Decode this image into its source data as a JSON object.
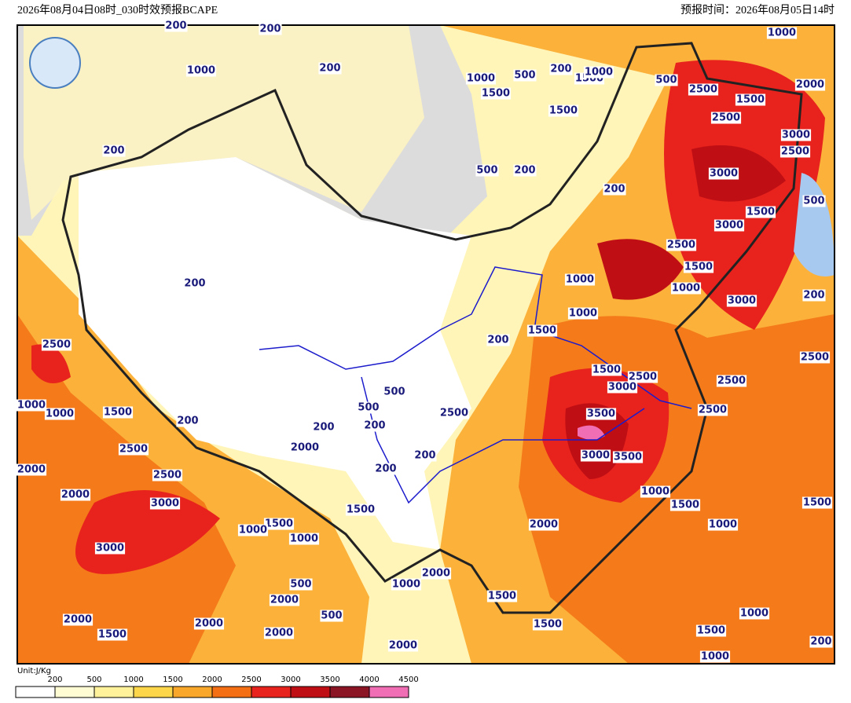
{
  "header": {
    "left": "2026年08月04日08时_030时效预报BCAPE",
    "right": "预报时间：2026年08月05日14时"
  },
  "legend": {
    "unit": "Unit:J/Kg",
    "levels": [
      "200",
      "500",
      "1000",
      "1500",
      "2000",
      "2500",
      "3000",
      "3500",
      "4000",
      "4500"
    ],
    "colors": [
      "#ffffff",
      "#fffbd2",
      "#fff29a",
      "#fdd64a",
      "#f9a72a",
      "#f46f14",
      "#e8221c",
      "#bf0f15",
      "#8c1525",
      "#f06eb4"
    ]
  },
  "contour_labels": [
    "200",
    "200",
    "1000",
    "200",
    "200",
    "1000",
    "500",
    "200",
    "1500",
    "1000",
    "1500",
    "1500",
    "500",
    "2500",
    "1500",
    "1000",
    "2000",
    "2500",
    "3000",
    "2500",
    "500",
    "200",
    "3000",
    "200",
    "500",
    "1500",
    "3000",
    "2500",
    "200",
    "1000",
    "1500",
    "200",
    "3000",
    "1000",
    "1000",
    "2500",
    "200",
    "1500",
    "2500",
    "1500",
    "2500",
    "3000",
    "2500",
    "500",
    "1000",
    "1000",
    "1500",
    "500",
    "2500",
    "2500",
    "3500",
    "200",
    "200",
    "200",
    "2500",
    "2000",
    "200",
    "3000",
    "3500",
    "2000",
    "2500",
    "200",
    "2000",
    "3000",
    "1000",
    "1500",
    "1500",
    "1500",
    "1500",
    "1000",
    "2000",
    "1000",
    "1000",
    "3000",
    "2000",
    "1000",
    "500",
    "2000",
    "1500",
    "500",
    "1000",
    "2000",
    "2000",
    "1500",
    "1500",
    "2000",
    "1500",
    "2000",
    "200",
    "1000"
  ]
}
